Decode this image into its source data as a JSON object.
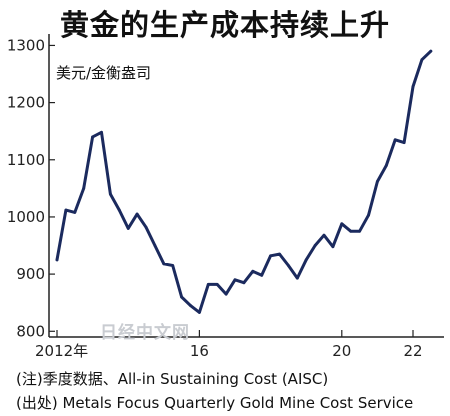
{
  "chart_data": {
    "type": "line",
    "title": "黄金的生产成本持续上升",
    "unit_label": "美元/金衡盎司",
    "ylim": [
      790,
      1320
    ],
    "yticks": [
      "800",
      "900",
      "1000",
      "1100",
      "1200",
      "1300"
    ],
    "xticks": [
      "2012年",
      "16",
      "20",
      "22"
    ],
    "grid": false,
    "series_color": "#1b2a5e",
    "series": [
      {
        "values": [
          925,
          1012,
          1008,
          1050,
          1140,
          1148,
          1040,
          1012,
          980,
          1005,
          982,
          950,
          918,
          915,
          860,
          845,
          833,
          882,
          882,
          865,
          890,
          885,
          905,
          898,
          932,
          935,
          915,
          893,
          925,
          950,
          968,
          948,
          988,
          975,
          975,
          1003,
          1062,
          1090,
          1135,
          1130,
          1228,
          1275,
          1290
        ]
      }
    ]
  },
  "watermark": "日经中文网",
  "notes": {
    "line1": "(注)季度数据、All-in Sustaining Cost (AISC)",
    "line2": "(出处) Metals Focus Quarterly Gold Mine Cost Service"
  }
}
